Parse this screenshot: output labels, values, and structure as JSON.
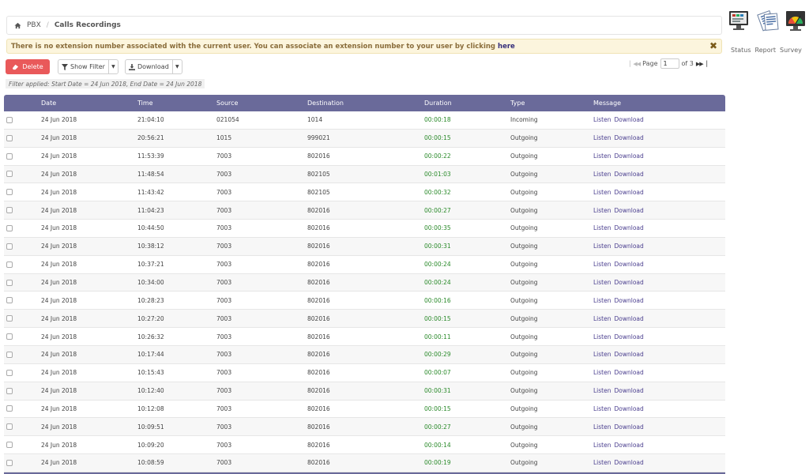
{
  "breadcrumb": {
    "home": "PBX",
    "current": "Calls Recordings"
  },
  "top_links": [
    "Status",
    "Report",
    "Survey"
  ],
  "alert": {
    "text": "There is no extension number associated with the current user. You can associate an extension number to your user by clicking",
    "link": "here",
    "close": "✖"
  },
  "toolbar": {
    "delete_label": "Delete",
    "filter_label": "Show Filter",
    "download_label": "Download",
    "filter_applied": "Filter applied: Start Date = 24 Jun 2018, End Date = 24 Jun 2018"
  },
  "pager": {
    "label": "Page",
    "current": "1",
    "of_text": "of 3"
  },
  "table": {
    "headers": {
      "date": "Date",
      "time": "Time",
      "source": "Source",
      "destination": "Destination",
      "duration": "Duration",
      "type": "Type",
      "message": "Message"
    },
    "listen": "Listen",
    "download": "Download",
    "rows": [
      [
        "24 Jun 2018",
        "21:04:10",
        "021054",
        "1014",
        "00:00:18",
        "Incoming"
      ],
      [
        "24 Jun 2018",
        "20:56:21",
        "1015",
        "999021",
        "00:00:15",
        "Outgoing"
      ],
      [
        "24 Jun 2018",
        "11:53:39",
        "7003",
        "802016",
        "00:00:22",
        "Outgoing"
      ],
      [
        "24 Jun 2018",
        "11:48:54",
        "7003",
        "802105",
        "00:01:03",
        "Outgoing"
      ],
      [
        "24 Jun 2018",
        "11:43:42",
        "7003",
        "802105",
        "00:00:32",
        "Outgoing"
      ],
      [
        "24 Jun 2018",
        "11:04:23",
        "7003",
        "802016",
        "00:00:27",
        "Outgoing"
      ],
      [
        "24 Jun 2018",
        "10:44:50",
        "7003",
        "802016",
        "00:00:35",
        "Outgoing"
      ],
      [
        "24 Jun 2018",
        "10:38:12",
        "7003",
        "802016",
        "00:00:31",
        "Outgoing"
      ],
      [
        "24 Jun 2018",
        "10:37:21",
        "7003",
        "802016",
        "00:00:24",
        "Outgoing"
      ],
      [
        "24 Jun 2018",
        "10:34:00",
        "7003",
        "802016",
        "00:00:24",
        "Outgoing"
      ],
      [
        "24 Jun 2018",
        "10:28:23",
        "7003",
        "802016",
        "00:00:16",
        "Outgoing"
      ],
      [
        "24 Jun 2018",
        "10:27:20",
        "7003",
        "802016",
        "00:00:15",
        "Outgoing"
      ],
      [
        "24 Jun 2018",
        "10:26:32",
        "7003",
        "802016",
        "00:00:11",
        "Outgoing"
      ],
      [
        "24 Jun 2018",
        "10:17:44",
        "7003",
        "802016",
        "00:00:29",
        "Outgoing"
      ],
      [
        "24 Jun 2018",
        "10:15:43",
        "7003",
        "802016",
        "00:00:07",
        "Outgoing"
      ],
      [
        "24 Jun 2018",
        "10:12:40",
        "7003",
        "802016",
        "00:00:31",
        "Outgoing"
      ],
      [
        "24 Jun 2018",
        "10:12:08",
        "7003",
        "802016",
        "00:00:15",
        "Outgoing"
      ],
      [
        "24 Jun 2018",
        "10:09:51",
        "7003",
        "802016",
        "00:00:27",
        "Outgoing"
      ],
      [
        "24 Jun 2018",
        "10:09:20",
        "7003",
        "802016",
        "00:00:14",
        "Outgoing"
      ],
      [
        "24 Jun 2018",
        "10:08:59",
        "7003",
        "802016",
        "00:00:19",
        "Outgoing"
      ]
    ]
  },
  "colors": {
    "header": "#6a6a9a",
    "delete": "#e9595a",
    "duration": "#2a8a2a",
    "link": "#4b3f8f"
  }
}
